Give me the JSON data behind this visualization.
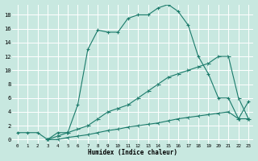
{
  "xlabel": "Humidex (Indice chaleur)",
  "background_color": "#c8e8e0",
  "grid_color": "#ffffff",
  "line_color": "#1a7a6a",
  "xlim": [
    -0.5,
    23.5
  ],
  "ylim": [
    -0.5,
    19.5
  ],
  "xticks": [
    0,
    1,
    2,
    3,
    4,
    5,
    6,
    7,
    8,
    9,
    10,
    11,
    12,
    13,
    14,
    15,
    16,
    17,
    18,
    19,
    20,
    21,
    22,
    23
  ],
  "yticks": [
    0,
    2,
    4,
    6,
    8,
    10,
    12,
    14,
    16,
    18
  ],
  "curve1_x": [
    0,
    1,
    2,
    3,
    4,
    5,
    6,
    7,
    8,
    9,
    10,
    11,
    12,
    13,
    14,
    15,
    16,
    17,
    18,
    19,
    20,
    21,
    22,
    23
  ],
  "curve1_y": [
    1,
    1,
    1,
    0,
    1,
    1,
    5,
    13,
    15.8,
    15.5,
    15.5,
    17.5,
    18,
    18,
    19,
    19.5,
    18.5,
    16.5,
    12,
    9.5,
    6,
    6,
    3,
    5.5
  ],
  "curve2_x": [
    3,
    4,
    5,
    6,
    7,
    8,
    9,
    10,
    11,
    12,
    13,
    14,
    15,
    16,
    17,
    18,
    19,
    20,
    21,
    22,
    23
  ],
  "curve2_y": [
    0,
    0.5,
    1,
    1.5,
    2,
    3,
    4,
    4.5,
    5,
    6,
    7,
    8,
    9,
    9.5,
    10,
    10.5,
    11,
    12,
    12,
    6,
    3
  ],
  "curve3_x": [
    3,
    4,
    5,
    6,
    7,
    8,
    9,
    10,
    11,
    12,
    13,
    14,
    15,
    16,
    17,
    18,
    19,
    20,
    21,
    22,
    23
  ],
  "curve3_y": [
    0,
    0,
    0.3,
    0.5,
    0.7,
    1,
    1.3,
    1.5,
    1.8,
    2,
    2.2,
    2.4,
    2.7,
    3,
    3.2,
    3.4,
    3.6,
    3.8,
    4,
    3,
    3
  ]
}
